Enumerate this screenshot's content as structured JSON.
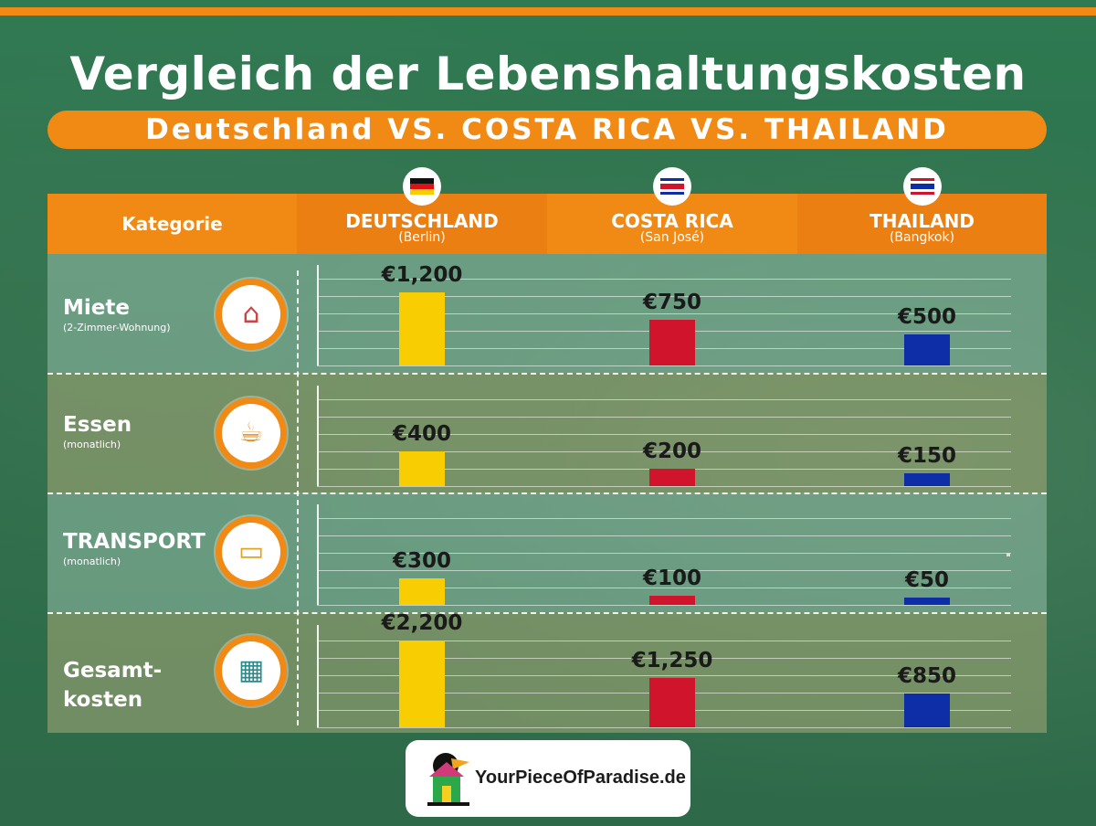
{
  "title": "Vergleich der Lebenshaltungskosten",
  "subtitle": "Deutschland VS. COSTA RICA VS. THAILAND",
  "header": {
    "category_label": "Kategorie",
    "countries": [
      {
        "name": "DEUTSCHLAND",
        "city": "(Berlin)",
        "flag": "germany-flag"
      },
      {
        "name": "COSTA RICA",
        "city": "(San José)",
        "flag": "costa-rica-flag"
      },
      {
        "name": "THAILAND",
        "city": "(Bangkok)",
        "flag": "thailand-flag"
      }
    ]
  },
  "rows": [
    {
      "label": "Miete",
      "sublabel": "(2-Zimmer-Wohnung)",
      "icon": "house-rent-icon",
      "value_labels": [
        "€1,200",
        "€750",
        "€500"
      ]
    },
    {
      "label": "Essen",
      "sublabel": "(monatlich)",
      "icon": "fast-food-icon",
      "value_labels": [
        "€400",
        "€200",
        "€150"
      ]
    },
    {
      "label": "TRANSPORT",
      "sublabel": "(monatlich)",
      "icon": "bus-icon",
      "value_labels": [
        "€300",
        "€100",
        "€50"
      ]
    },
    {
      "label": "Gesamt-\nkosten",
      "sublabel": "",
      "icon": "bills-calculator-icon",
      "value_labels": [
        "€2,200",
        "€1,250",
        "€850"
      ]
    }
  ],
  "colors": {
    "deutschland": "#f8cd02",
    "costa_rica": "#d0142c",
    "thailand": "#0d2ea6",
    "accent": "#f08a14",
    "background": "#2e6e4c"
  },
  "chart_data": [
    {
      "type": "bar",
      "categories": [
        "DEUTSCHLAND",
        "COSTA RICA",
        "THAILAND"
      ],
      "values": [
        1200,
        750,
        500
      ],
      "title": "Miete"
    },
    {
      "type": "bar",
      "categories": [
        "DEUTSCHLAND",
        "COSTA RICA",
        "THAILAND"
      ],
      "values": [
        400,
        200,
        150
      ],
      "title": "Essen"
    },
    {
      "type": "bar",
      "categories": [
        "DEUTSCHLAND",
        "COSTA RICA",
        "THAILAND"
      ],
      "values": [
        300,
        100,
        50
      ],
      "title": "TRANSPORT"
    },
    {
      "type": "bar",
      "categories": [
        "DEUTSCHLAND",
        "COSTA RICA",
        "THAILAND"
      ],
      "values": [
        2200,
        1250,
        850
      ],
      "title": "Gesamt-kosten"
    }
  ],
  "footer": {
    "logo_text": "YourPieceOfParadise.de",
    "logo_icon": "toucan-house-logo-icon"
  }
}
